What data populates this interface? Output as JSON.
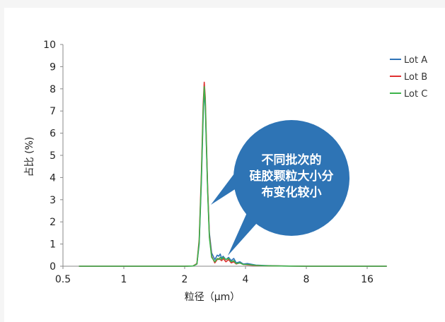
{
  "chart_data": {
    "type": "line",
    "xlabel": "粒径（μm）",
    "ylabel": "占比 (%)",
    "x_scale": "log2",
    "xlim": [
      0.5,
      22
    ],
    "ylim": [
      0,
      10
    ],
    "x_ticks": [
      "0.5",
      "1",
      "2",
      "4",
      "8",
      "16"
    ],
    "y_ticks": [
      "0",
      "1",
      "2",
      "3",
      "4",
      "5",
      "6",
      "7",
      "8",
      "9",
      "10"
    ],
    "legend_position": "right",
    "series": [
      {
        "name": "Lot A",
        "color": "#2e73b8",
        "x": [
          0.6,
          1.0,
          1.5,
          2.0,
          2.2,
          2.3,
          2.36,
          2.42,
          2.47,
          2.5,
          2.53,
          2.56,
          2.6,
          2.65,
          2.72,
          2.82,
          2.9,
          2.95,
          3.0,
          3.05,
          3.1,
          3.2,
          3.3,
          3.4,
          3.5,
          3.6,
          3.75,
          3.9,
          4.1,
          4.5,
          5.0,
          6.0,
          8.0,
          12.0,
          16.0,
          20.0
        ],
        "y": [
          0,
          0,
          0,
          0,
          0.01,
          0.1,
          1.0,
          3.8,
          6.8,
          7.9,
          7.2,
          5.5,
          3.4,
          1.5,
          0.6,
          0.3,
          0.5,
          0.45,
          0.55,
          0.35,
          0.45,
          0.3,
          0.4,
          0.25,
          0.35,
          0.15,
          0.2,
          0.1,
          0.12,
          0.05,
          0.03,
          0.01,
          0,
          0,
          0,
          0
        ]
      },
      {
        "name": "Lot B",
        "color": "#e03030",
        "x": [
          0.6,
          1.0,
          1.5,
          2.0,
          2.2,
          2.3,
          2.36,
          2.42,
          2.47,
          2.5,
          2.53,
          2.56,
          2.6,
          2.65,
          2.72,
          2.82,
          2.9,
          2.95,
          3.0,
          3.05,
          3.1,
          3.2,
          3.3,
          3.4,
          3.5,
          3.6,
          3.75,
          3.9,
          4.1,
          4.5,
          5.0,
          6.0,
          8.0,
          12.0,
          16.0,
          20.0
        ],
        "y": [
          0,
          0,
          0,
          0,
          0.01,
          0.12,
          1.2,
          4.2,
          7.3,
          8.3,
          7.6,
          5.8,
          3.5,
          1.4,
          0.45,
          0.15,
          0.3,
          0.35,
          0.3,
          0.25,
          0.35,
          0.2,
          0.3,
          0.15,
          0.2,
          0.1,
          0.15,
          0.08,
          0.06,
          0.03,
          0.02,
          0.01,
          0,
          0,
          0,
          0
        ]
      },
      {
        "name": "Lot C",
        "color": "#3cb44b",
        "x": [
          0.6,
          1.0,
          1.5,
          2.0,
          2.2,
          2.3,
          2.36,
          2.42,
          2.47,
          2.5,
          2.53,
          2.56,
          2.6,
          2.65,
          2.72,
          2.82,
          2.9,
          2.95,
          3.0,
          3.05,
          3.1,
          3.2,
          3.3,
          3.4,
          3.5,
          3.6,
          3.75,
          3.9,
          4.1,
          4.5,
          5.0,
          6.0,
          8.0,
          12.0,
          16.0,
          20.0
        ],
        "y": [
          0,
          0,
          0,
          0,
          0.01,
          0.1,
          1.1,
          4.0,
          7.0,
          8.1,
          7.4,
          5.6,
          3.3,
          1.3,
          0.4,
          0.2,
          0.35,
          0.3,
          0.4,
          0.3,
          0.4,
          0.3,
          0.35,
          0.2,
          0.25,
          0.12,
          0.15,
          0.08,
          0.08,
          0.04,
          0.02,
          0.01,
          0,
          0,
          0,
          0
        ]
      }
    ],
    "annotation": [
      "不同批次的",
      "硅胶颗粒大小分",
      "布变化较小"
    ]
  },
  "colors": {
    "bubble": "#2e74b5",
    "axis": "#888888"
  }
}
